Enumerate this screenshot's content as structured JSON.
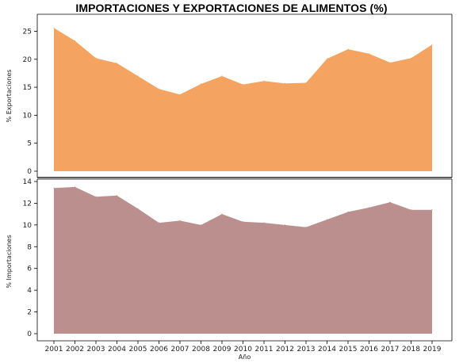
{
  "title": "IMPORTACIONES Y EXPORTACIONES DE ALIMENTOS (%)",
  "colors": {
    "exports_fill": "#f4a460",
    "imports_fill": "#bc8f8f",
    "axis": "#000000"
  },
  "chart_data": [
    {
      "type": "area",
      "x": [
        2001,
        2002,
        2003,
        2004,
        2005,
        2006,
        2007,
        2008,
        2009,
        2010,
        2011,
        2012,
        2013,
        2014,
        2015,
        2016,
        2017,
        2018,
        2019
      ],
      "series": [
        {
          "values": [
            25.6,
            23.3,
            20.2,
            19.3,
            17.0,
            14.7,
            13.7,
            15.6,
            17.0,
            15.5,
            16.1,
            15.7,
            15.8,
            20.1,
            21.8,
            21.0,
            19.4,
            20.2,
            22.6
          ]
        }
      ],
      "ylabel": "% Exportaciones",
      "xlabel": "",
      "yticks": [
        0,
        5,
        10,
        15,
        20,
        25
      ],
      "ylim": [
        0,
        26.8
      ]
    },
    {
      "type": "area",
      "x": [
        2001,
        2002,
        2003,
        2004,
        2005,
        2006,
        2007,
        2008,
        2009,
        2010,
        2011,
        2012,
        2013,
        2014,
        2015,
        2016,
        2017,
        2018,
        2019
      ],
      "series": [
        {
          "values": [
            13.4,
            13.5,
            12.6,
            12.7,
            11.5,
            10.2,
            10.4,
            10.0,
            11.0,
            10.3,
            10.2,
            10.0,
            9.8,
            10.5,
            11.2,
            11.6,
            12.1,
            11.4,
            11.4
          ]
        }
      ],
      "ylabel": "% Importaciones",
      "xlabel": "Año",
      "yticks": [
        0,
        2,
        4,
        6,
        8,
        10,
        12,
        14
      ],
      "ylim": [
        0,
        14
      ]
    }
  ]
}
